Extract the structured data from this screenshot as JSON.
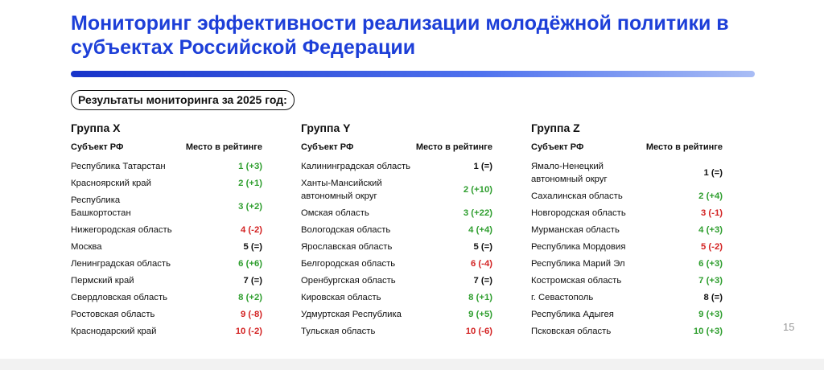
{
  "header": {
    "title": "Мониторинг эффективности реализации молодёжной политики в субъектах Российской Федерации"
  },
  "subtitle": "Результаты мониторинга за 2025 год:",
  "groups": [
    {
      "title": "Группа X",
      "columns": [
        "Субъект РФ",
        "Место в рейтинге"
      ],
      "rows": [
        {
          "region": "Республика Татарстан",
          "place": "1 (+3)",
          "color": "#2e9e2e"
        },
        {
          "region": "Красноярский край",
          "place": "2 (+1)",
          "color": "#2e9e2e"
        },
        {
          "region": "Республика\nБашкортостан",
          "place": "3 (+2)",
          "color": "#2e9e2e"
        },
        {
          "region": "Нижегородская область",
          "place": "4 (-2)",
          "color": "#d32222"
        },
        {
          "region": "Москва",
          "place": "5 (=)",
          "color": "#111111"
        },
        {
          "region": "Ленинградская область",
          "place": "6 (+6)",
          "color": "#2e9e2e"
        },
        {
          "region": "Пермский край",
          "place": "7 (=)",
          "color": "#111111"
        },
        {
          "region": "Свердловская область",
          "place": "8 (+2)",
          "color": "#2e9e2e"
        },
        {
          "region": "Ростовская область",
          "place": "9 (-8)",
          "color": "#d32222"
        },
        {
          "region": "Краснодарский край",
          "place": "10 (-2)",
          "color": "#d32222"
        }
      ]
    },
    {
      "title": "Группа Y",
      "columns": [
        "Субъект РФ",
        "Место в рейтинге"
      ],
      "rows": [
        {
          "region": "Калининградская область",
          "place": "1 (=)",
          "color": "#111111"
        },
        {
          "region": "Ханты-Мансийский\nавтономный округ",
          "place": "2 (+10)",
          "color": "#2e9e2e"
        },
        {
          "region": "Омская область",
          "place": "3 (+22)",
          "color": "#2e9e2e"
        },
        {
          "region": "Вологодская область",
          "place": "4 (+4)",
          "color": "#2e9e2e"
        },
        {
          "region": "Ярославская область",
          "place": "5 (=)",
          "color": "#111111"
        },
        {
          "region": "Белгородская область",
          "place": "6 (-4)",
          "color": "#d32222"
        },
        {
          "region": "Оренбургская область",
          "place": "7 (=)",
          "color": "#111111"
        },
        {
          "region": "Кировская область",
          "place": "8 (+1)",
          "color": "#2e9e2e"
        },
        {
          "region": "Удмуртская Республика",
          "place": "9 (+5)",
          "color": "#2e9e2e"
        },
        {
          "region": "Тульская область",
          "place": "10 (-6)",
          "color": "#d32222"
        }
      ]
    },
    {
      "title": "Группа Z",
      "columns": [
        "Субъект РФ",
        "Место в рейтинге"
      ],
      "rows": [
        {
          "region": "Ямало-Ненецкий\nавтономный округ",
          "place": "1 (=)",
          "color": "#111111"
        },
        {
          "region": "Сахалинская область",
          "place": "2 (+4)",
          "color": "#2e9e2e"
        },
        {
          "region": "Новгородская область",
          "place": "3 (-1)",
          "color": "#d32222"
        },
        {
          "region": "Мурманская область",
          "place": "4 (+3)",
          "color": "#2e9e2e"
        },
        {
          "region": "Республика Мордовия",
          "place": "5 (-2)",
          "color": "#d32222"
        },
        {
          "region": "Республика Марий Эл",
          "place": "6 (+3)",
          "color": "#2e9e2e"
        },
        {
          "region": "Костромская область",
          "place": "7 (+3)",
          "color": "#2e9e2e"
        },
        {
          "region": "г. Севастополь",
          "place": "8 (=)",
          "color": "#111111"
        },
        {
          "region": "Республика Адыгея",
          "place": "9 (+3)",
          "color": "#2e9e2e"
        },
        {
          "region": "Псковская область",
          "place": "10 (+3)",
          "color": "#2e9e2e"
        }
      ]
    }
  ],
  "page_number": "15"
}
